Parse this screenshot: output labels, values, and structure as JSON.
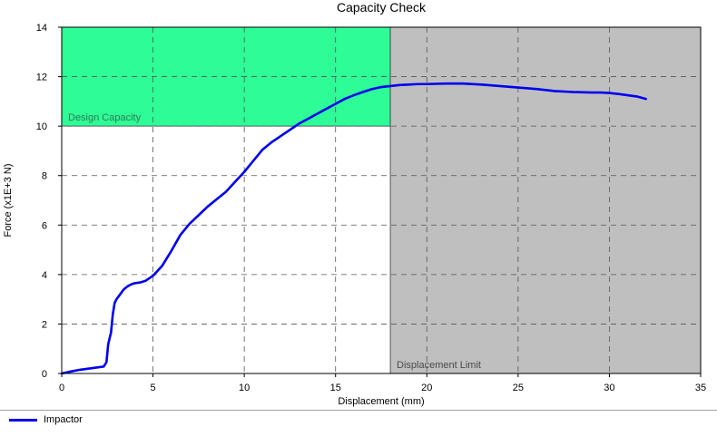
{
  "chart_data": {
    "type": "line",
    "title": "Capacity Check",
    "xlabel": "Displacement (mm)",
    "ylabel": "Force (x1E+3 N)",
    "xlim": [
      0,
      35
    ],
    "ylim": [
      0,
      14
    ],
    "xticks": [
      0,
      5,
      10,
      15,
      20,
      25,
      30,
      35
    ],
    "yticks": [
      0,
      2,
      4,
      6,
      8,
      10,
      12,
      14
    ],
    "grid": true,
    "legend_position": "bottom-left",
    "regions": [
      {
        "label": "Design Capacity",
        "x": [
          0,
          18
        ],
        "y": [
          10,
          14
        ],
        "color": "#2efc96"
      },
      {
        "label": "Displacement Limit",
        "x": [
          18,
          35
        ],
        "y": [
          0,
          14
        ],
        "color": "#bfbfbf"
      }
    ],
    "series": [
      {
        "name": "Impactor",
        "color": "#0000ee",
        "x": [
          0,
          0.5,
          1.0,
          1.5,
          2.0,
          2.3,
          2.45,
          2.55,
          2.7,
          2.8,
          2.9,
          3.0,
          3.2,
          3.4,
          3.6,
          3.8,
          4.0,
          4.3,
          4.6,
          5.0,
          5.5,
          6.0,
          6.5,
          7.0,
          7.5,
          8.0,
          8.5,
          9.0,
          9.5,
          10.0,
          10.5,
          11.0,
          11.5,
          12.0,
          12.5,
          13.0,
          13.5,
          14.0,
          14.5,
          15.0,
          15.5,
          16.0,
          16.5,
          17.0,
          17.5,
          18.0,
          18.5,
          19.0,
          19.5,
          20.0,
          21.0,
          22.0,
          23.0,
          24.0,
          25.0,
          26.0,
          27.0,
          28.0,
          29.0,
          29.5,
          30.0,
          30.5,
          31.0,
          31.5,
          32.0
        ],
        "y": [
          0.0,
          0.08,
          0.15,
          0.2,
          0.25,
          0.28,
          0.45,
          1.2,
          1.65,
          2.4,
          2.85,
          3.0,
          3.2,
          3.4,
          3.52,
          3.6,
          3.65,
          3.68,
          3.75,
          3.95,
          4.35,
          4.95,
          5.6,
          6.05,
          6.4,
          6.75,
          7.05,
          7.35,
          7.75,
          8.15,
          8.6,
          9.05,
          9.35,
          9.6,
          9.85,
          10.1,
          10.3,
          10.5,
          10.7,
          10.9,
          11.1,
          11.25,
          11.38,
          11.5,
          11.58,
          11.62,
          11.66,
          11.68,
          11.7,
          11.7,
          11.72,
          11.72,
          11.68,
          11.62,
          11.56,
          11.5,
          11.42,
          11.38,
          11.36,
          11.36,
          11.34,
          11.3,
          11.25,
          11.2,
          11.1
        ]
      }
    ]
  },
  "legend": {
    "items": [
      {
        "label": "Impactor",
        "color": "#0000ee"
      }
    ]
  }
}
